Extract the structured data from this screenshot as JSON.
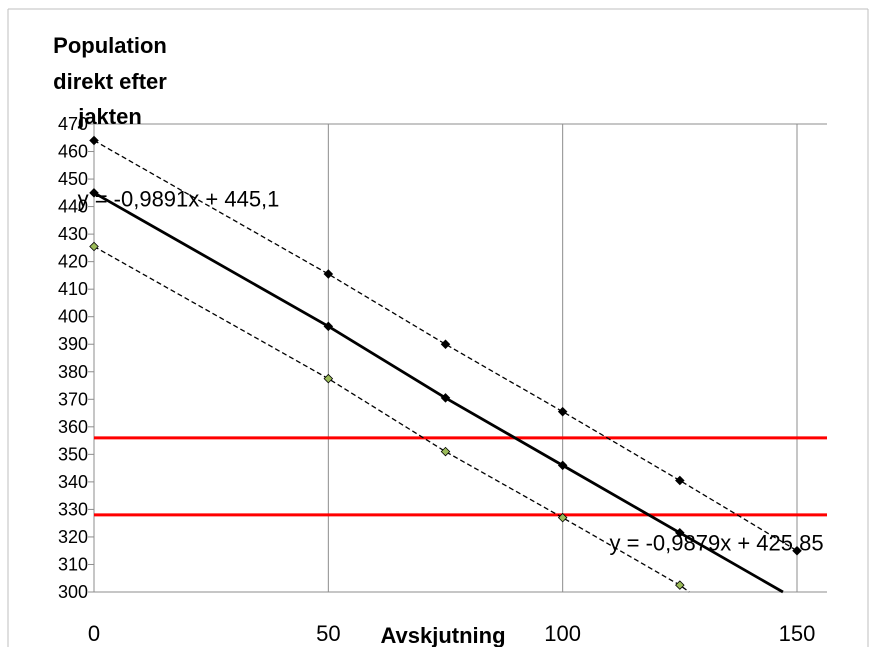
{
  "chart_data": {
    "type": "line",
    "ylabel": "Population direkt efter jakten",
    "ylabel_lines": [
      "Population",
      "direkt efter",
      "jakten"
    ],
    "xlabel": "Avskjutning",
    "xlim": [
      0,
      150
    ],
    "ylim": [
      300,
      470
    ],
    "x_ticks": [
      0,
      50,
      100,
      150
    ],
    "y_ticks": [
      300,
      310,
      320,
      330,
      340,
      350,
      360,
      370,
      380,
      390,
      400,
      410,
      420,
      430,
      440,
      450,
      460,
      470
    ],
    "grid": "vertical",
    "series": [
      {
        "style": "dashed",
        "color": "#000000",
        "marker_color": "#000000",
        "points": [
          [
            0,
            464
          ],
          [
            50,
            415.5
          ],
          [
            75,
            390
          ],
          [
            100,
            365.5
          ],
          [
            125,
            340.5
          ],
          [
            150,
            315
          ]
        ]
      },
      {
        "style": "solid",
        "color": "#000000",
        "marker_color": "#000000",
        "points": [
          [
            0,
            445
          ],
          [
            50,
            396.5
          ],
          [
            75,
            370.5
          ],
          [
            100,
            346
          ],
          [
            125,
            321.5
          ],
          [
            147,
            300
          ]
        ]
      },
      {
        "style": "dashed",
        "color": "#000000",
        "marker_color": "#9bbb59",
        "points": [
          [
            0,
            425.5
          ],
          [
            50,
            377.5
          ],
          [
            75,
            351
          ],
          [
            100,
            327
          ],
          [
            125,
            302.5
          ],
          [
            127,
            300
          ]
        ]
      }
    ],
    "hlines": [
      {
        "y": 356,
        "color": "#ff0000"
      },
      {
        "y": 328,
        "color": "#ff0000"
      }
    ],
    "annotations": [
      {
        "text": "y = -0,9891x + 445,1",
        "x": -3.5,
        "y": 440
      },
      {
        "text": "y = -0,9879x + 425,85",
        "x": 110,
        "y": 315
      }
    ]
  }
}
